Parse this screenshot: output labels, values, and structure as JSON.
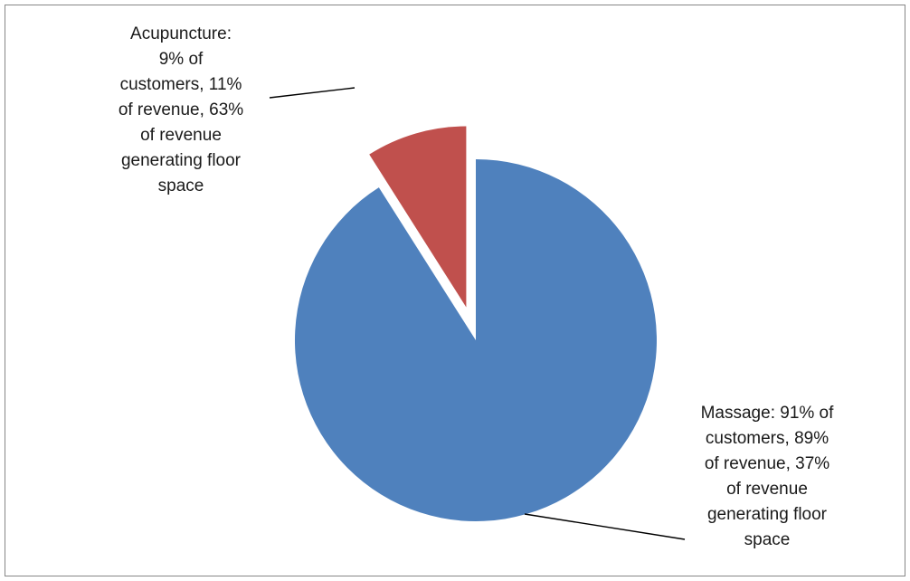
{
  "chart_data": {
    "type": "pie",
    "start_angle_deg": 0,
    "direction": "clockwise",
    "exploded": [
      "Acupuncture"
    ],
    "slices": [
      {
        "name": "Massage",
        "value": 91,
        "color": "#4F81BD",
        "label": "Massage: 91% of\ncustomers, 89%\nof revenue, 37%\nof revenue\ngenerating floor\nspace"
      },
      {
        "name": "Acupuncture",
        "value": 9,
        "color": "#C0504D",
        "label": "Acupuncture:\n9% of\ncustomers, 11%\nof revenue, 63%\nof revenue\ngenerating floor\nspace"
      }
    ]
  }
}
